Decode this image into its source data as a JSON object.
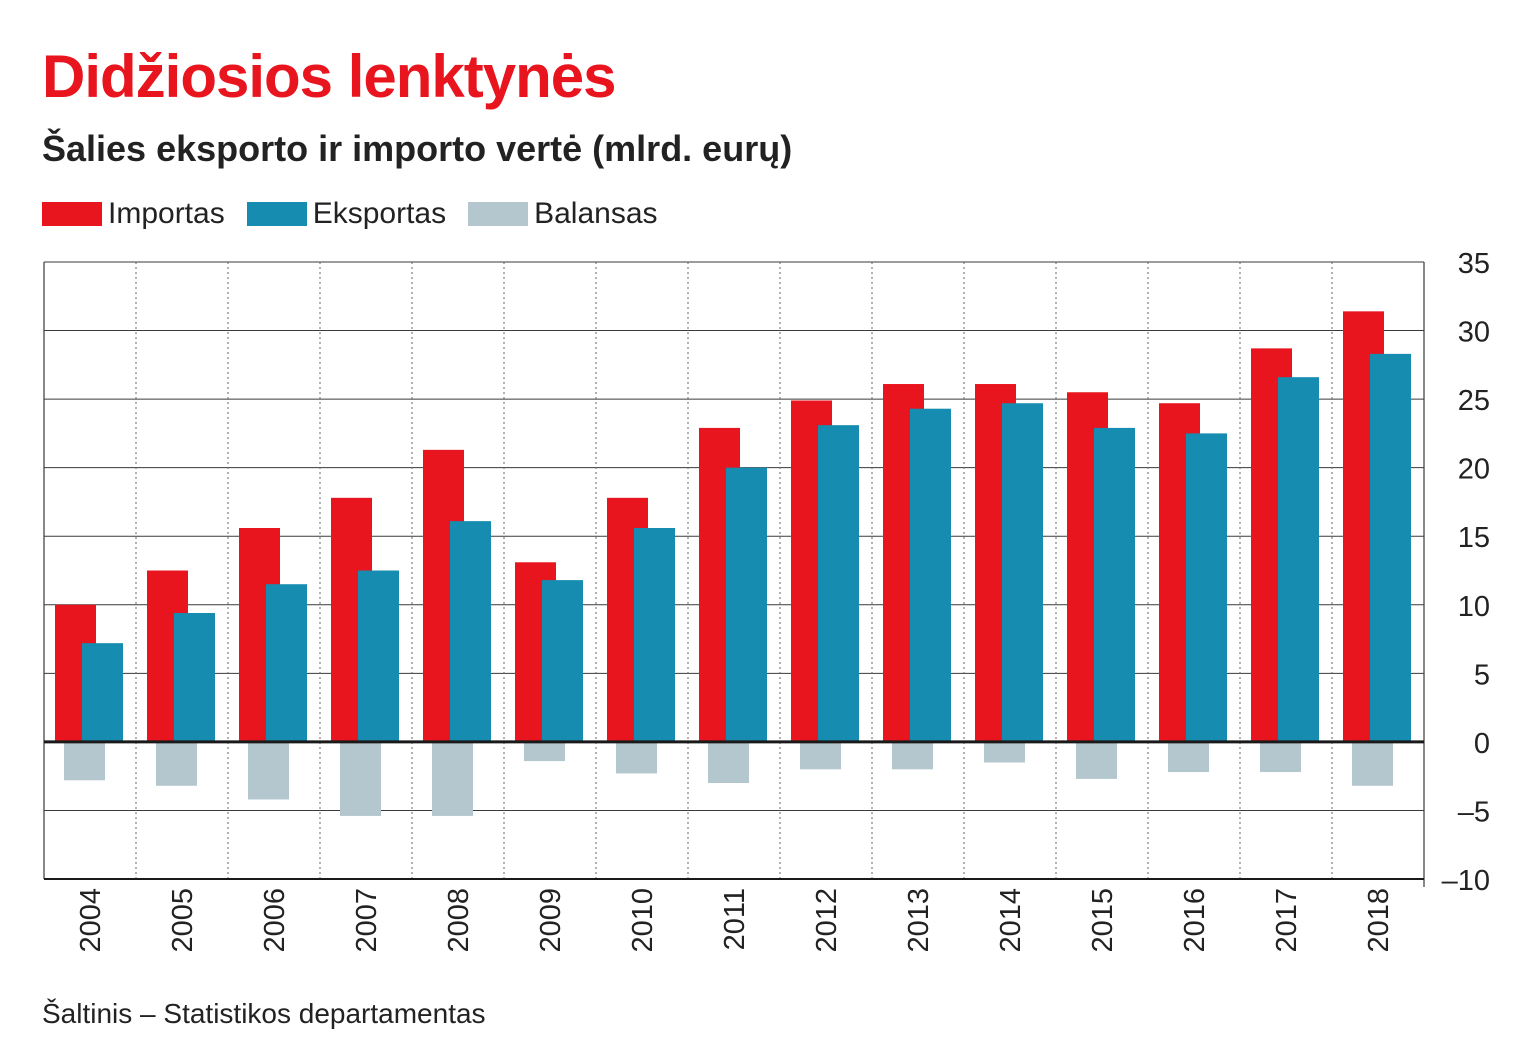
{
  "title": "Didžiosios lenktynės",
  "subtitle": "Šalies eksporto ir importo vertė (mlrd. eurų)",
  "source": "Šaltinis – Statistikos departamentas",
  "legend": [
    {
      "name": "Importas",
      "color": "#e8141e"
    },
    {
      "name": "Eksportas",
      "color": "#168db0"
    },
    {
      "name": "Balansas",
      "color": "#b4c6ce"
    }
  ],
  "chart_data": {
    "type": "bar",
    "title": "Didžiosios lenktynės",
    "subtitle": "Šalies eksporto ir importo vertė (mlrd. eurų)",
    "xlabel": "",
    "ylabel": "",
    "ylim": [
      -10,
      35
    ],
    "yticks": [
      35,
      30,
      25,
      20,
      15,
      10,
      5,
      0,
      -5,
      -10
    ],
    "ytick_labels": [
      "35",
      "30",
      "25",
      "20",
      "15",
      "10",
      "5",
      "0",
      "–5",
      "–10"
    ],
    "y_axis_position": "right",
    "grid": true,
    "legend_position": "top-left",
    "categories": [
      "2004",
      "2005",
      "2006",
      "2007",
      "2008",
      "2009",
      "2010",
      "2011",
      "2012",
      "2013",
      "2014",
      "2015",
      "2016",
      "2017",
      "2018"
    ],
    "series": [
      {
        "name": "Importas",
        "color": "#e8141e",
        "values": [
          10.0,
          12.5,
          15.6,
          17.8,
          21.3,
          13.1,
          17.8,
          22.9,
          24.9,
          26.1,
          26.1,
          25.5,
          24.7,
          28.7,
          31.4
        ]
      },
      {
        "name": "Eksportas",
        "color": "#168db0",
        "values": [
          7.2,
          9.4,
          11.5,
          12.5,
          16.1,
          11.8,
          15.6,
          20.0,
          23.1,
          24.3,
          24.7,
          22.9,
          22.5,
          26.6,
          28.3
        ]
      },
      {
        "name": "Balansas",
        "color": "#b4c6ce",
        "values": [
          -2.8,
          -3.2,
          -4.2,
          -5.4,
          -5.4,
          -1.4,
          -2.3,
          -3.0,
          -2.0,
          -2.0,
          -1.5,
          -2.7,
          -2.2,
          -2.2,
          -3.2
        ]
      }
    ]
  }
}
